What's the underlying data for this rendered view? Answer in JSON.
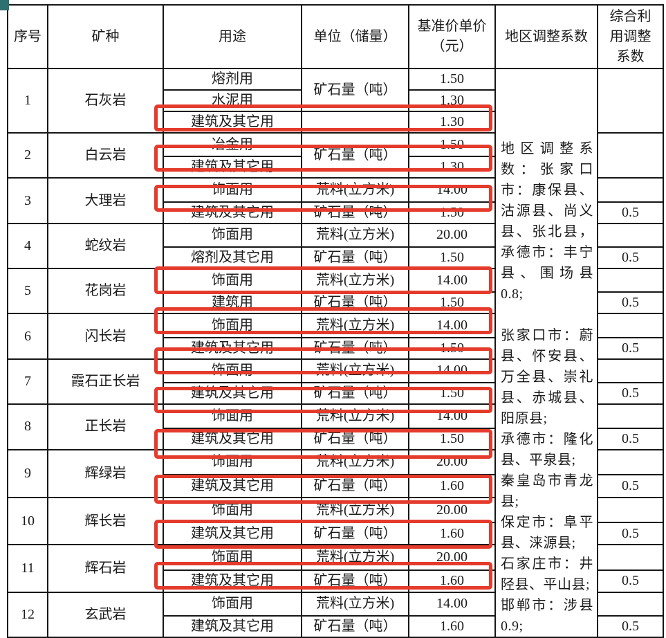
{
  "table": {
    "headers": [
      "序号",
      "矿种",
      "用途",
      "单位（储量）",
      "基准价单价（元）",
      "地区调整系数",
      "综合利用调整系数"
    ],
    "highlight_color": "#e43b2c",
    "region_note": {
      "paragraphs": [
        "地区调整系数：张家口市：康保县、沽源县、尚义县、张北县，承德市：丰宁县、围场县0.8;",
        "",
        "张家口市：蔚县、怀安县、万全县、崇礼县、赤城县、阳原县;",
        "承德市：隆化县、平泉县;",
        "秦皇岛市青龙县;",
        "保定市：阜平县、涞源县;",
        "石家庄市：井陉县、平山县;",
        "邯郸市：涉县0.9;"
      ]
    },
    "minerals": [
      {
        "no": "1",
        "name": "石灰岩",
        "rows": [
          {
            "use": "熔剂用",
            "unit": "矿石量（吨）",
            "unit_rowspan": 2,
            "price": "1.50",
            "util": "",
            "util_rowspan": 3
          },
          {
            "use": "水泥用",
            "price": "1.30"
          },
          {
            "use": "建筑及其它用",
            "unit": "",
            "price": "1.30",
            "highlight": true
          }
        ]
      },
      {
        "no": "2",
        "name": "白云岩",
        "rows": [
          {
            "use": "冶金用",
            "unit": "矿石量（吨）",
            "unit_rowspan": 2,
            "price": "1.50",
            "util": "",
            "util_rowspan": 2
          },
          {
            "use": "建筑及其它用",
            "price": "1.30",
            "highlight": true
          }
        ]
      },
      {
        "no": "3",
        "name": "大理岩",
        "rows": [
          {
            "use": "饰面用",
            "unit": "荒料(立方米)",
            "price": "14.00",
            "util": ""
          },
          {
            "use": "建筑及其它用",
            "unit": "矿石量（吨）",
            "price": "1.50",
            "util": "0.5",
            "highlight": true
          }
        ]
      },
      {
        "no": "4",
        "name": "蛇纹岩",
        "rows": [
          {
            "use": "饰面用",
            "unit": "荒料(立方米)",
            "price": "20.00",
            "util": ""
          },
          {
            "use": "熔剂及其它用",
            "unit": "矿石量（吨）",
            "price": "1.50",
            "util": "0.5"
          }
        ]
      },
      {
        "no": "5",
        "name": "花岗岩",
        "rows": [
          {
            "use": "饰面用",
            "unit": "荒料(立方米)",
            "price": "14.00",
            "util": ""
          },
          {
            "use": "建筑用",
            "unit": "矿石量（吨）",
            "price": "1.50",
            "util": "0.5",
            "highlight": true
          }
        ]
      },
      {
        "no": "6",
        "name": "闪长岩",
        "rows": [
          {
            "use": "饰面用",
            "unit": "荒料(立方米)",
            "price": "14.00",
            "util": ""
          },
          {
            "use": "建筑及其它用",
            "unit": "矿石量（吨）",
            "price": "1.50",
            "util": "0.5",
            "highlight": true
          }
        ]
      },
      {
        "no": "7",
        "name": "霞石正长岩",
        "rows": [
          {
            "use": "饰面用",
            "unit": "荒料(立方米)",
            "price": "14.00",
            "util": ""
          },
          {
            "use": "建筑及其它用",
            "unit": "矿石量（吨）",
            "price": "1.50",
            "util": "0.5",
            "highlight": true
          }
        ]
      },
      {
        "no": "8",
        "name": "正长岩",
        "rows": [
          {
            "use": "饰面用",
            "unit": "荒料(立方米)",
            "price": "14.00",
            "util": ""
          },
          {
            "use": "建筑及其它用",
            "unit": "矿石量（吨）",
            "price": "1.50",
            "util": "0.5",
            "highlight": true
          }
        ]
      },
      {
        "no": "9",
        "name": "辉绿岩",
        "rows": [
          {
            "use": "饰面用",
            "unit": "荒料(立方米)",
            "price": "20.00",
            "util": ""
          },
          {
            "use": "建筑及其它用",
            "unit": "矿石量（吨）",
            "price": "1.60",
            "util": "0.5",
            "highlight": true
          }
        ]
      },
      {
        "no": "10",
        "name": "辉长岩",
        "rows": [
          {
            "use": "饰面用",
            "unit": "荒料(立方米)",
            "price": "20.00",
            "util": ""
          },
          {
            "use": "建筑及其它用",
            "unit": "矿石量（吨）",
            "price": "1.60",
            "util": "0.5",
            "highlight": true
          }
        ]
      },
      {
        "no": "11",
        "name": "辉石岩",
        "rows": [
          {
            "use": "饰面用",
            "unit": "荒料(立方米)",
            "price": "20.00",
            "util": ""
          },
          {
            "use": "建筑及其它用",
            "unit": "矿石量（吨）",
            "price": "1.60",
            "util": "0.5",
            "highlight": true
          }
        ]
      },
      {
        "no": "12",
        "name": "玄武岩",
        "rows": [
          {
            "use": "饰面用",
            "unit": "荒料(立方米)",
            "price": "14.00",
            "util": ""
          },
          {
            "use": "建筑及其它用",
            "unit": "矿石量（吨）",
            "price": "1.60",
            "util": "0.5",
            "highlight": true
          }
        ]
      }
    ]
  }
}
